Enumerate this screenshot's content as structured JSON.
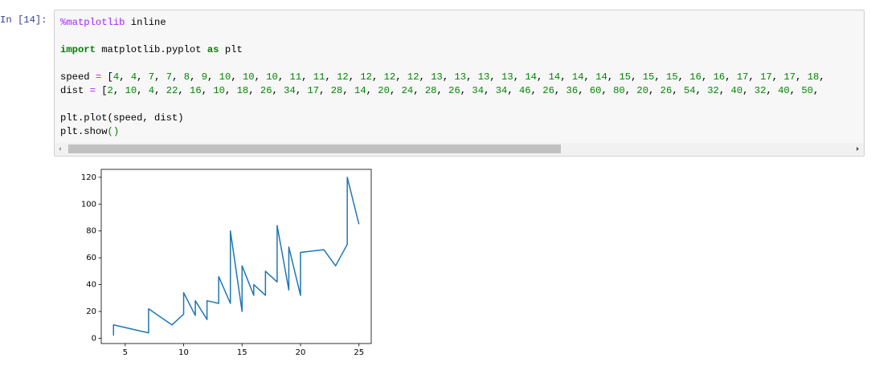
{
  "cell": {
    "prompt": "In [14]:",
    "code": [
      [
        {
          "text": "%matplotlib",
          "color": "#aa22ff"
        },
        {
          "text": " inline"
        }
      ],
      [
        {
          "text": "import",
          "color": "#008000",
          "bold": true
        },
        {
          "text": " matplotlib.pyplot "
        },
        {
          "text": "as",
          "color": "#008000",
          "bold": true
        },
        {
          "text": " plt"
        }
      ],
      [
        {
          "text": "speed "
        },
        {
          "text": "=",
          "color": "#aa22ff"
        },
        {
          "text": " [4, 4, 7, 7, 8, 9, 10, 10, 10, 11, 11, 12, 12, 12, 12, 13, 13, 13, 13, 14, 14, 14, 14, 15, 15, 15, 16, 16, 17, 17, 17, 18,"
        }
      ],
      [
        {
          "text": "dist "
        },
        {
          "text": "=",
          "color": "#aa22ff"
        },
        {
          "text": " [2, 10, 4, 22, 16, 10, 18, 26, 34, 17, 28, 14, 20, 24, 28, 26, 34, 34, 46, 26, 36, 60, 80, 20, 26, 54, 32, 40, 32, 40, 50,"
        }
      ],
      [
        {
          "text": "plt.plot(speed, dist)"
        }
      ],
      [
        {
          "text": "plt.show"
        },
        {
          "text": "()",
          "color": "#008000"
        }
      ]
    ]
  },
  "chart_data": {
    "type": "line",
    "x": [
      4,
      4,
      7,
      7,
      8,
      9,
      10,
      10,
      10,
      11,
      11,
      12,
      12,
      12,
      12,
      13,
      13,
      13,
      13,
      14,
      14,
      14,
      14,
      15,
      15,
      15,
      16,
      16,
      17,
      17,
      17,
      18,
      18,
      18,
      18,
      19,
      19,
      19,
      20,
      20,
      20,
      20,
      20,
      22,
      23,
      24,
      24,
      24,
      24,
      25
    ],
    "series": [
      {
        "color": "#1f77b4",
        "values": [
          2,
          10,
          4,
          22,
          16,
          10,
          18,
          26,
          34,
          17,
          28,
          14,
          20,
          24,
          28,
          26,
          34,
          34,
          46,
          26,
          36,
          60,
          80,
          20,
          26,
          54,
          32,
          40,
          32,
          40,
          50,
          42,
          56,
          76,
          84,
          36,
          46,
          68,
          32,
          48,
          52,
          56,
          64,
          66,
          54,
          70,
          92,
          93,
          120,
          85
        ]
      }
    ],
    "xlim": [
      2.95,
      26.05
    ],
    "ylim": [
      -3.9,
      125.9
    ],
    "xticks": [
      5,
      10,
      15,
      20,
      25
    ],
    "yticks": [
      0,
      20,
      40,
      60,
      80,
      100,
      120
    ]
  }
}
